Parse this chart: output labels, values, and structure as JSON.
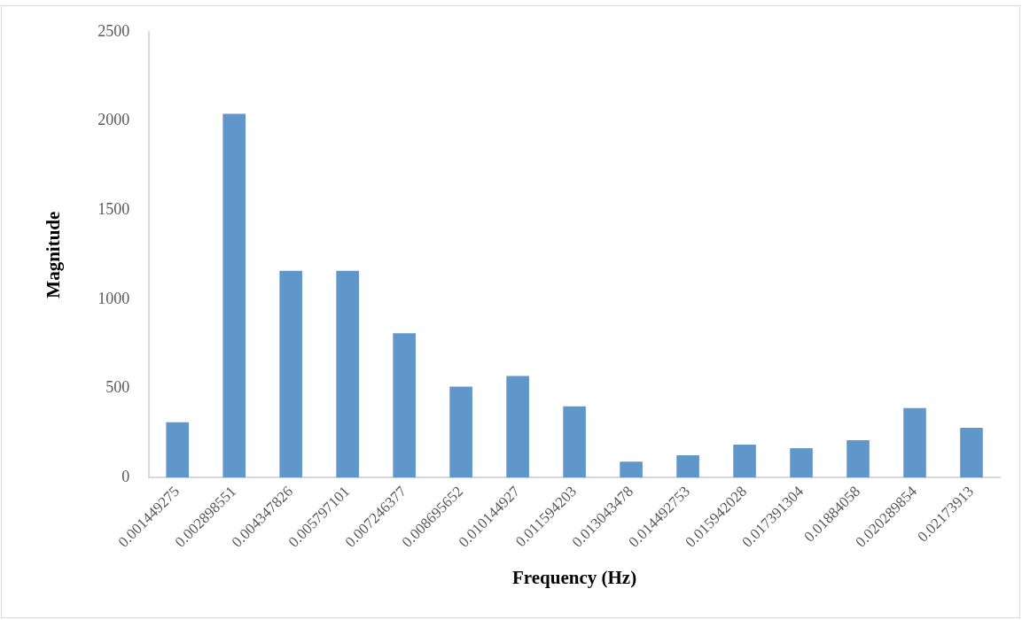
{
  "chart_data": {
    "type": "bar",
    "xlabel": "Frequency (Hz)",
    "ylabel": "Magnitude",
    "categories": [
      "0.001449275",
      "0.002898551",
      "0.004347826",
      "0.005797101",
      "0.007246377",
      "0.008695652",
      "0.010144927",
      "0.011594203",
      "0.013043478",
      "0.014492753",
      "0.015942028",
      "0.017391304",
      "0.01884058",
      "0.020289854",
      "0.02173913"
    ],
    "values": [
      310,
      2040,
      1160,
      1160,
      810,
      510,
      570,
      400,
      90,
      125,
      185,
      165,
      210,
      390,
      280
    ],
    "color": "#6096c9",
    "ylim": [
      0,
      2500
    ],
    "yticks": [
      0,
      500,
      1000,
      1500,
      2000,
      2500
    ],
    "grid": false,
    "legend": false
  }
}
